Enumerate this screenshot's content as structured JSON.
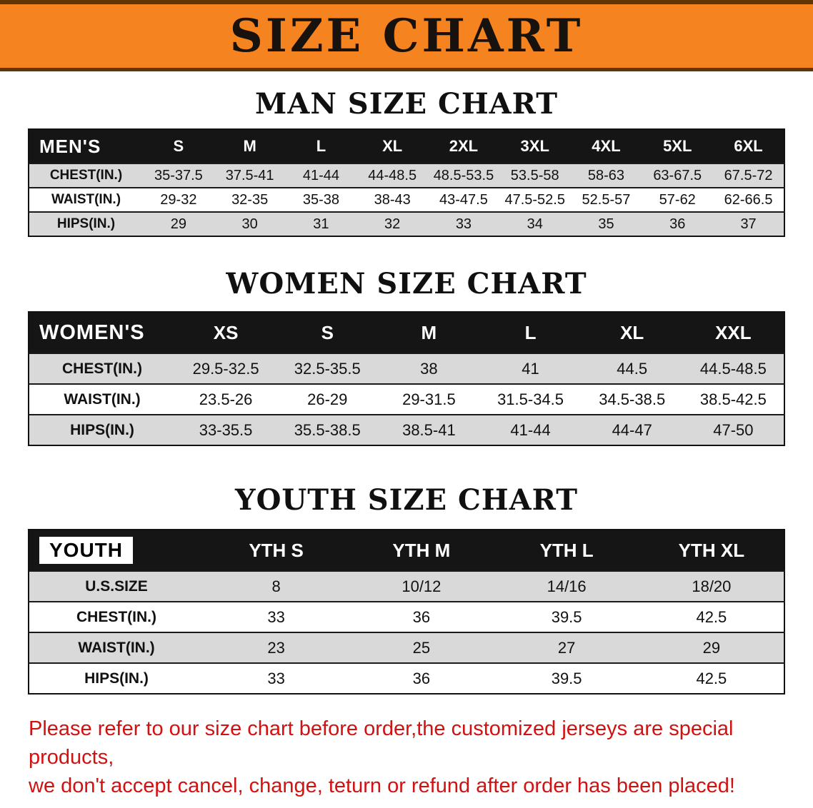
{
  "banner": {
    "title": "SIZE CHART"
  },
  "colors": {
    "banner_bg": "#f5831f",
    "table_header_bg": "#151515",
    "row_shade": "#d9d9d9",
    "note_text": "#d21111"
  },
  "sections": [
    {
      "heading": "MAN SIZE CHART",
      "table": {
        "label": "MEN'S",
        "columns": [
          "S",
          "M",
          "L",
          "XL",
          "2XL",
          "3XL",
          "4XL",
          "5XL",
          "6XL"
        ],
        "rows": [
          {
            "label": "CHEST(IN.)",
            "values": [
              "35-37.5",
              "37.5-41",
              "41-44",
              "44-48.5",
              "48.5-53.5",
              "53.5-58",
              "58-63",
              "63-67.5",
              "67.5-72"
            ]
          },
          {
            "label": "WAIST(IN.)",
            "values": [
              "29-32",
              "32-35",
              "35-38",
              "38-43",
              "43-47.5",
              "47.5-52.5",
              "52.5-57",
              "57-62",
              "62-66.5"
            ]
          },
          {
            "label": "HIPS(IN.)",
            "values": [
              "29",
              "30",
              "31",
              "32",
              "33",
              "34",
              "35",
              "36",
              "37"
            ]
          }
        ]
      }
    },
    {
      "heading": "WOMEN SIZE CHART",
      "table": {
        "label": "WOMEN'S",
        "columns": [
          "XS",
          "S",
          "M",
          "L",
          "XL",
          "XXL"
        ],
        "rows": [
          {
            "label": "CHEST(IN.)",
            "values": [
              "29.5-32.5",
              "32.5-35.5",
              "38",
              "41",
              "44.5",
              "44.5-48.5"
            ]
          },
          {
            "label": "WAIST(IN.)",
            "values": [
              "23.5-26",
              "26-29",
              "29-31.5",
              "31.5-34.5",
              "34.5-38.5",
              "38.5-42.5"
            ]
          },
          {
            "label": "HIPS(IN.)",
            "values": [
              "33-35.5",
              "35.5-38.5",
              "38.5-41",
              "41-44",
              "44-47",
              "47-50"
            ]
          }
        ]
      }
    },
    {
      "heading": "YOUTH SIZE CHART",
      "table": {
        "label": "YOUTH",
        "columns": [
          "YTH S",
          "YTH M",
          "YTH L",
          "YTH XL"
        ],
        "rows": [
          {
            "label": "U.S.SIZE",
            "values": [
              "8",
              "10/12",
              "14/16",
              "18/20"
            ]
          },
          {
            "label": "CHEST(IN.)",
            "values": [
              "33",
              "36",
              "39.5",
              "42.5"
            ]
          },
          {
            "label": "WAIST(IN.)",
            "values": [
              "23",
              "25",
              "27",
              "29"
            ]
          },
          {
            "label": "HIPS(IN.)",
            "values": [
              "33",
              "36",
              "39.5",
              "42.5"
            ]
          }
        ]
      }
    }
  ],
  "note": {
    "line1": "Please refer to our size chart before order,the customized jerseys are special products,",
    "line2": "we don't accept cancel, change, teturn or refund after order has been placed!"
  }
}
